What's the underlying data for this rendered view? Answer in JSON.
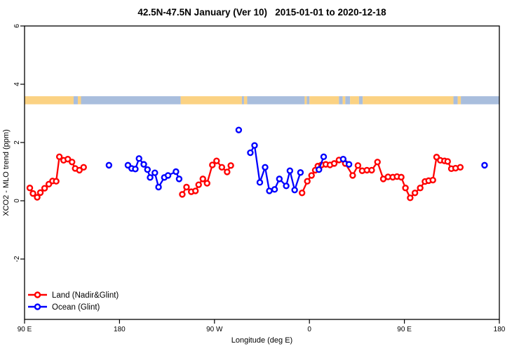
{
  "header": {
    "title": "42.5N-47.5N January (Ver 10)   2015-01-01 to 2020-12-18"
  },
  "chart_data": {
    "type": "line",
    "title": "42.5N-47.5N January (Ver 10)   2015-01-01 to 2020-12-18",
    "xlabel": "Longitude (deg E)",
    "ylabel": "XCO2 - MLO trend (ppm)",
    "grid": false,
    "x_axis": {
      "range_deg_east": [
        90,
        540
      ],
      "ticks": [
        {
          "value": 90,
          "label": "90 E"
        },
        {
          "value": 180,
          "label": "180"
        },
        {
          "value": 270,
          "label": "90 W"
        },
        {
          "value": 360,
          "label": "0"
        },
        {
          "value": 450,
          "label": "90 E"
        },
        {
          "value": 540,
          "label": "180"
        }
      ]
    },
    "y_axis": {
      "range": [
        -4.1,
        6.1
      ],
      "ticks": [
        {
          "value": -2,
          "label": "-2"
        },
        {
          "value": 0,
          "label": "0"
        },
        {
          "value": 2,
          "label": "2"
        },
        {
          "value": 4,
          "label": "4"
        },
        {
          "value": 6,
          "label": "6"
        }
      ]
    },
    "legend": {
      "position": "bottom-left",
      "entries": [
        {
          "label": "Land (Nadir&Glint)",
          "color": "#ff0000"
        },
        {
          "label": "Ocean (Glint)",
          "color": "#0000ff"
        }
      ]
    },
    "series": [
      {
        "name": "Land (Nadir&Glint)",
        "color": "#ff0000",
        "marker": "open-circle",
        "segments": [
          [
            [
              95,
              0.44
            ],
            [
              98,
              0.25
            ],
            [
              102,
              0.12
            ],
            [
              105,
              0.28
            ],
            [
              109,
              0.43
            ],
            [
              113,
              0.57
            ],
            [
              116.5,
              0.68
            ],
            [
              120,
              0.67
            ],
            [
              123,
              1.51
            ],
            [
              127,
              1.39
            ],
            [
              131,
              1.43
            ],
            [
              135,
              1.33
            ],
            [
              138,
              1.11
            ],
            [
              142,
              1.05
            ],
            [
              146,
              1.15
            ]
          ],
          [
            [
              239.5,
              0.22
            ],
            [
              243.5,
              0.47
            ],
            [
              248,
              0.31
            ],
            [
              252,
              0.34
            ],
            [
              255,
              0.55
            ],
            [
              259,
              0.75
            ],
            [
              263,
              0.6
            ],
            [
              268,
              1.23
            ],
            [
              272,
              1.37
            ],
            [
              277,
              1.15
            ],
            [
              282,
              0.99
            ],
            [
              285.5,
              1.21
            ]
          ],
          [
            [
              353,
              0.27
            ],
            [
              358,
              0.67
            ],
            [
              362,
              0.87
            ],
            [
              365.5,
              1.05
            ],
            [
              368,
              1.19
            ],
            [
              371.5,
              1.23
            ],
            [
              375.5,
              1.25
            ],
            [
              379.5,
              1.23
            ],
            [
              383.5,
              1.28
            ],
            [
              388,
              1.4
            ],
            [
              394,
              1.28
            ],
            [
              401,
              0.87
            ],
            [
              406,
              1.21
            ],
            [
              410,
              1.03
            ],
            [
              414.5,
              1.05
            ],
            [
              419,
              1.05
            ],
            [
              424.5,
              1.33
            ],
            [
              430,
              0.75
            ],
            [
              434.5,
              0.82
            ],
            [
              439,
              0.81
            ],
            [
              443,
              0.83
            ],
            [
              447,
              0.81
            ],
            [
              451,
              0.44
            ],
            [
              455.5,
              0.1
            ],
            [
              460,
              0.27
            ],
            [
              465,
              0.44
            ],
            [
              469.5,
              0.66
            ],
            [
              473,
              0.69
            ],
            [
              477,
              0.71
            ],
            [
              480.5,
              1.5
            ],
            [
              484,
              1.39
            ],
            [
              488,
              1.37
            ],
            [
              491,
              1.35
            ],
            [
              494.5,
              1.1
            ],
            [
              498.5,
              1.12
            ],
            [
              503,
              1.15
            ]
          ]
        ]
      },
      {
        "name": "Ocean (Glint)",
        "color": "#0000ff",
        "marker": "open-circle",
        "segments": [
          [
            [
              170,
              1.22
            ]
          ],
          [
            [
              188,
              1.22
            ],
            [
              191.5,
              1.11
            ],
            [
              195,
              1.09
            ],
            [
              198.5,
              1.45
            ],
            [
              203,
              1.25
            ],
            [
              206.5,
              1.07
            ],
            [
              209,
              0.8
            ],
            [
              213.5,
              0.96
            ],
            [
              217,
              0.47
            ],
            [
              222.5,
              0.8
            ],
            [
              226,
              0.87
            ],
            [
              233.5,
              1.0
            ],
            [
              236.5,
              0.75
            ]
          ],
          [
            [
              293,
              2.43
            ]
          ],
          [
            [
              304,
              1.65
            ],
            [
              308,
              1.9
            ],
            [
              313,
              0.63
            ],
            [
              318,
              1.15
            ],
            [
              322,
              0.34
            ],
            [
              327,
              0.39
            ],
            [
              331.5,
              0.75
            ],
            [
              338,
              0.51
            ],
            [
              341.5,
              1.03
            ],
            [
              346,
              0.37
            ],
            [
              351.5,
              0.97
            ]
          ],
          [
            [
              369,
              1.07
            ],
            [
              373.5,
              1.51
            ]
          ],
          [
            [
              392,
              1.43
            ],
            [
              397.5,
              1.25
            ]
          ],
          [
            [
              526,
              1.22
            ]
          ]
        ]
      }
    ],
    "map_strip": {
      "description": "land/ocean surface band for 42.5N-47.5N latitude zone",
      "value_center": 3.45,
      "land_color": "#fbd283",
      "ocean_color": "#a9bedd",
      "segments": [
        {
          "from": 90,
          "to": 136.5,
          "surface": "land"
        },
        {
          "from": 136.5,
          "to": 140.5,
          "surface": "ocean"
        },
        {
          "from": 140.5,
          "to": 143.5,
          "surface": "land"
        },
        {
          "from": 143.5,
          "to": 238,
          "surface": "ocean"
        },
        {
          "from": 238,
          "to": 296,
          "surface": "land"
        },
        {
          "from": 296,
          "to": 298,
          "surface": "ocean"
        },
        {
          "from": 298,
          "to": 301,
          "surface": "land"
        },
        {
          "from": 301,
          "to": 355.5,
          "surface": "ocean"
        },
        {
          "from": 355.5,
          "to": 357.5,
          "surface": "land"
        },
        {
          "from": 357.5,
          "to": 360,
          "surface": "ocean"
        },
        {
          "from": 360,
          "to": 388,
          "surface": "land"
        },
        {
          "from": 388,
          "to": 391.5,
          "surface": "ocean"
        },
        {
          "from": 391.5,
          "to": 394,
          "surface": "land"
        },
        {
          "from": 394,
          "to": 398.5,
          "surface": "ocean"
        },
        {
          "from": 398.5,
          "to": 407,
          "surface": "land"
        },
        {
          "from": 407,
          "to": 410.5,
          "surface": "ocean"
        },
        {
          "from": 410.5,
          "to": 496.5,
          "surface": "land"
        },
        {
          "from": 496.5,
          "to": 500.5,
          "surface": "ocean"
        },
        {
          "from": 500.5,
          "to": 503.5,
          "surface": "land"
        },
        {
          "from": 503.5,
          "to": 540,
          "surface": "ocean"
        }
      ]
    }
  }
}
